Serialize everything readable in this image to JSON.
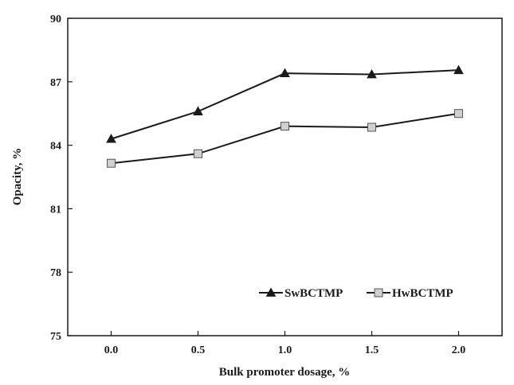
{
  "chart_data": {
    "type": "line",
    "title": "",
    "xlabel": "Bulk promoter dosage, %",
    "ylabel": "Opacity, %",
    "x": [
      0.0,
      0.5,
      1.0,
      1.5,
      2.0
    ],
    "x_tick_labels": [
      "0.0",
      "0.5",
      "1.0",
      "1.5",
      "2.0"
    ],
    "xlim": [
      -0.25,
      2.25
    ],
    "ylim": [
      75,
      90
    ],
    "y_ticks": [
      75,
      78,
      81,
      84,
      87,
      90
    ],
    "y_tick_labels": [
      "75",
      "78",
      "81",
      "84",
      "87",
      "90"
    ],
    "grid": false,
    "legend_position": "bottom-right",
    "series": [
      {
        "name": "SwBCTMP",
        "marker": "triangle",
        "values": [
          84.3,
          85.6,
          87.4,
          87.35,
          87.55
        ],
        "line_color": "#1a1a1a",
        "marker_color": "#1a1a1a"
      },
      {
        "name": "HwBCTMP",
        "marker": "square",
        "values": [
          83.15,
          83.6,
          84.9,
          84.85,
          85.5
        ],
        "line_color": "#1a1a1a",
        "marker_color": "#d0d0d0"
      }
    ]
  }
}
